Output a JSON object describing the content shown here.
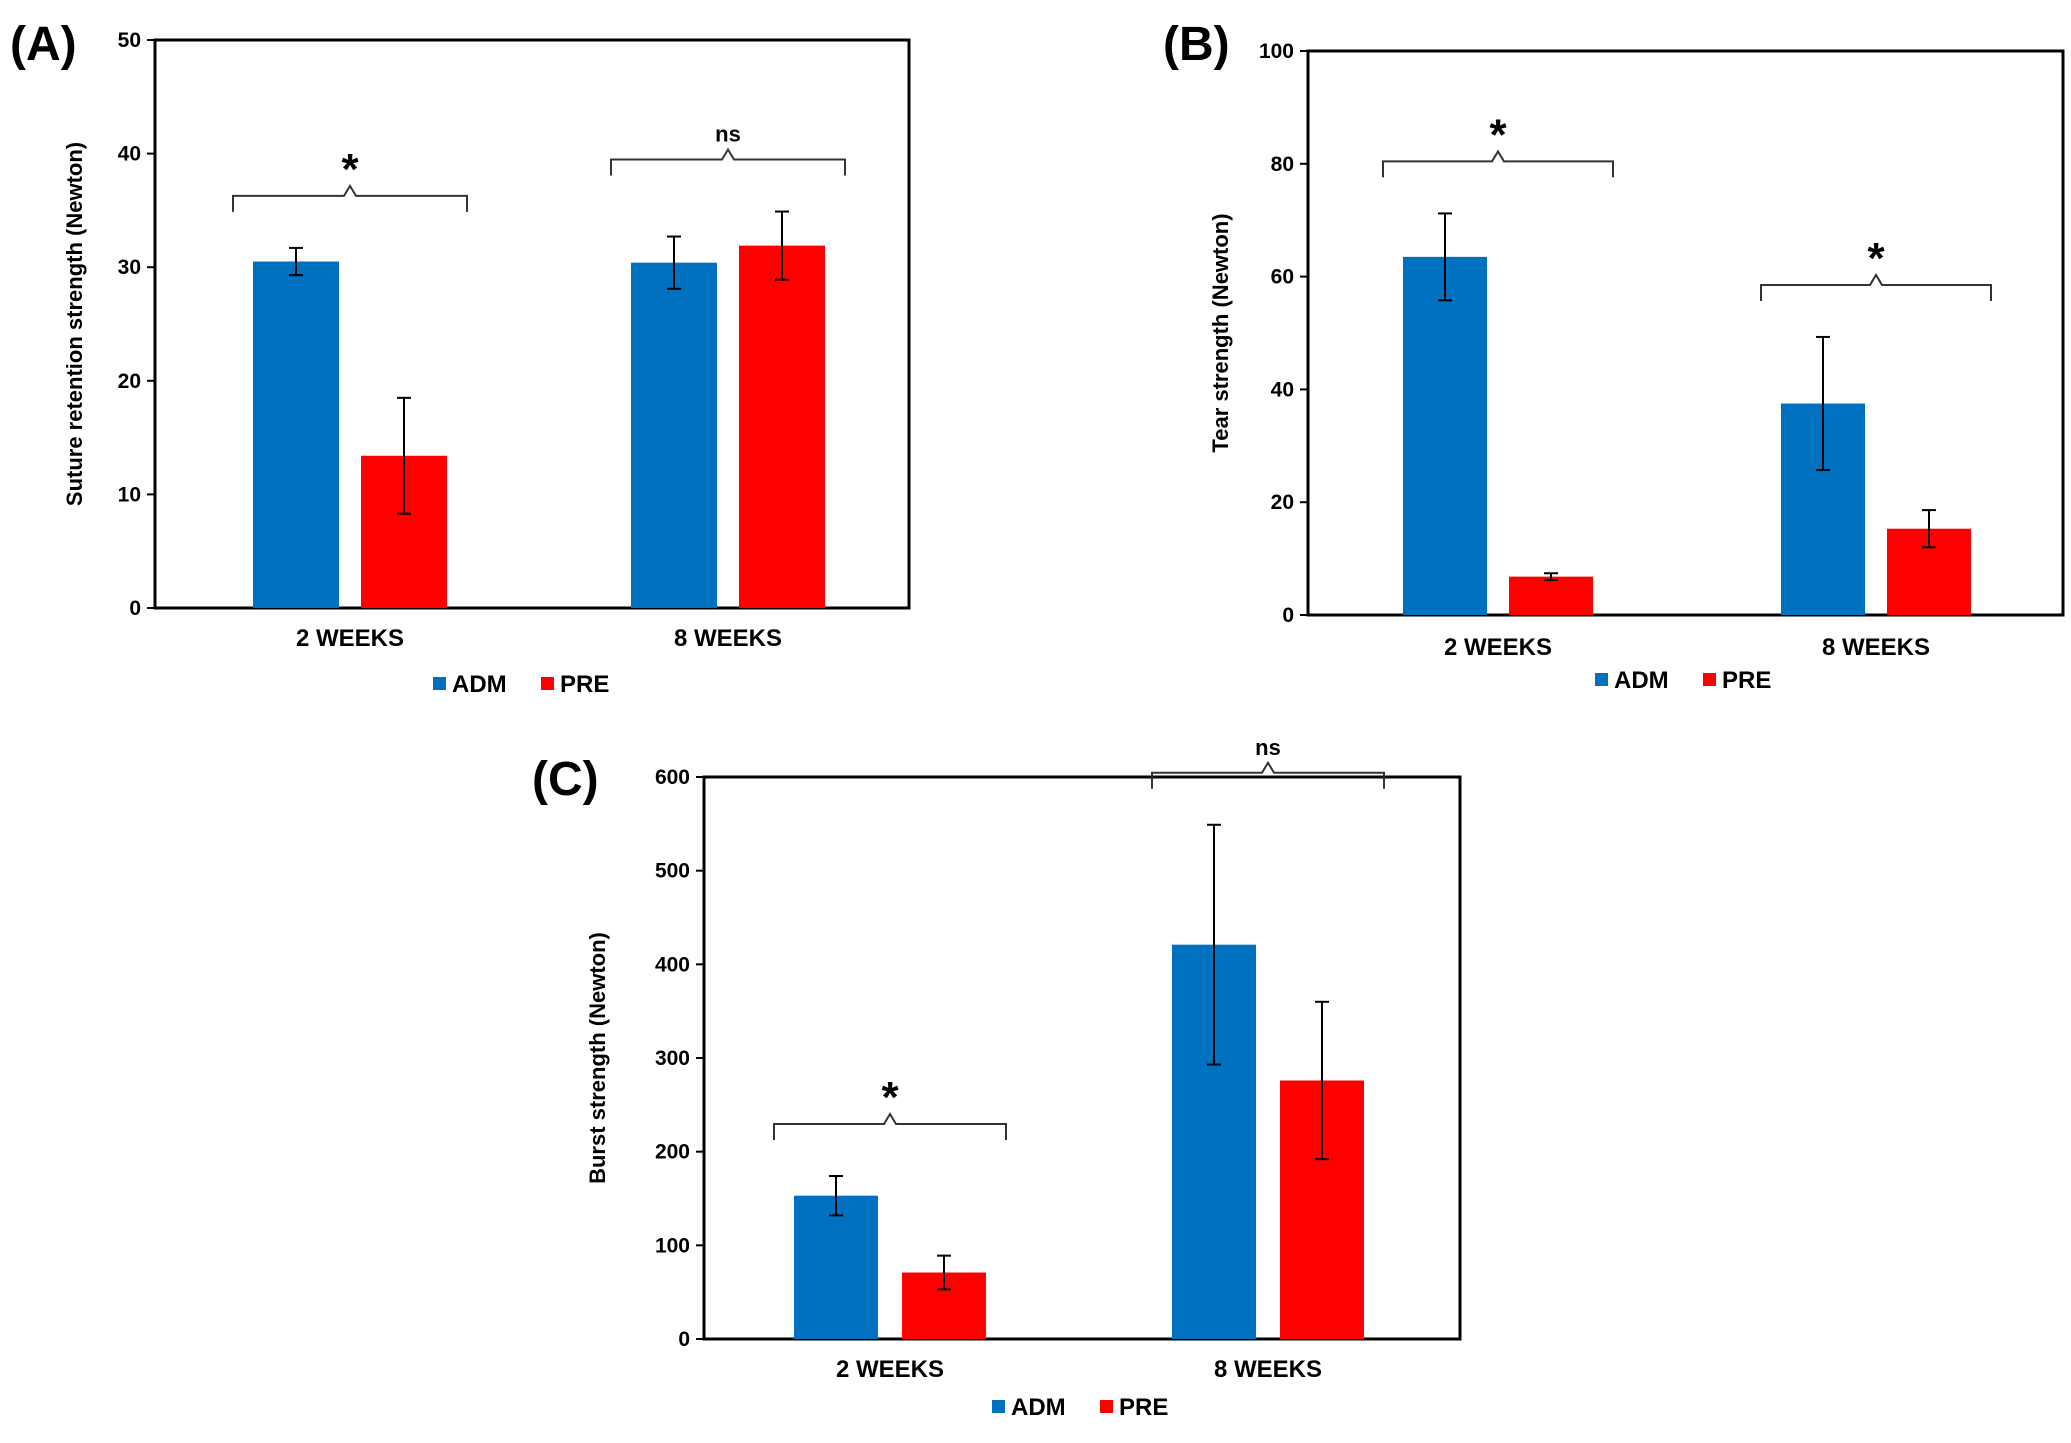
{
  "colors": {
    "ADM": "#0070C0",
    "PRE": "#FF0000",
    "axis": "#000000",
    "bracket": "#333333"
  },
  "chart_data": [
    {
      "panel": "(A)",
      "type": "bar",
      "ylabel": "Suture retention strength (Newton)",
      "xlabel": "",
      "ylim": [
        0,
        50
      ],
      "yticks": [
        0,
        10,
        20,
        30,
        40,
        50
      ],
      "categories": [
        "2 WEEKS",
        "8 WEEKS"
      ],
      "series": [
        {
          "name": "ADM",
          "values": [
            30.5,
            30.4
          ],
          "errors": [
            1.2,
            2.3
          ]
        },
        {
          "name": "PRE",
          "values": [
            13.4,
            31.9
          ],
          "errors": [
            5.1,
            3.0
          ]
        }
      ],
      "significance": [
        "*",
        "ns"
      ],
      "legend": "bottom-center",
      "grid": false
    },
    {
      "panel": "(B)",
      "type": "bar",
      "ylabel": "Tear strength (Newton)",
      "xlabel": "",
      "ylim": [
        0,
        100
      ],
      "yticks": [
        0,
        20,
        40,
        60,
        80,
        100
      ],
      "categories": [
        "2 WEEKS",
        "8 WEEKS"
      ],
      "series": [
        {
          "name": "ADM",
          "values": [
            63.5,
            37.5
          ],
          "errors": [
            7.7,
            11.8
          ]
        },
        {
          "name": "PRE",
          "values": [
            6.8,
            15.3
          ],
          "errors": [
            0.6,
            3.3
          ]
        }
      ],
      "significance": [
        "*",
        "*"
      ],
      "legend": "bottom-center",
      "grid": false
    },
    {
      "panel": "(C)",
      "type": "bar",
      "ylabel": "Burst strength (Newton)",
      "xlabel": "",
      "ylim": [
        0,
        600
      ],
      "yticks": [
        0,
        100,
        200,
        300,
        400,
        500,
        600
      ],
      "categories": [
        "2 WEEKS",
        "8 WEEKS"
      ],
      "series": [
        {
          "name": "ADM",
          "values": [
            153,
            421
          ],
          "errors": [
            21,
            128
          ]
        },
        {
          "name": "PRE",
          "values": [
            71,
            276
          ],
          "errors": [
            18,
            84
          ]
        }
      ],
      "significance": [
        "*",
        "ns"
      ],
      "legend": "bottom-center",
      "grid": false
    }
  ]
}
